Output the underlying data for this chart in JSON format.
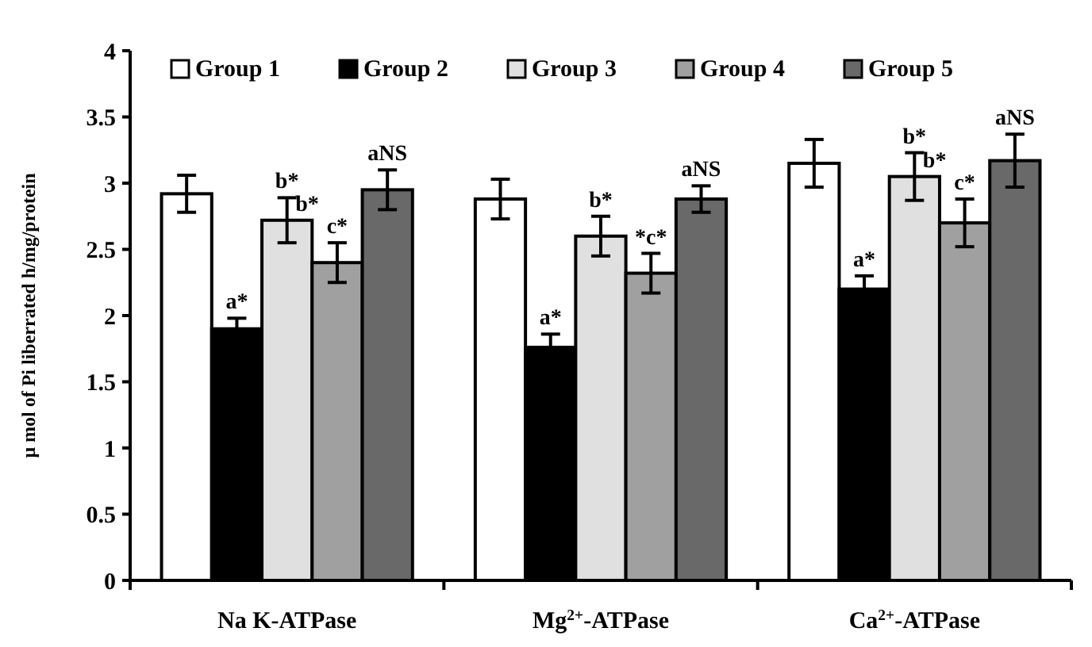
{
  "chart_data": {
    "type": "bar",
    "ylabel": "μ mol of Pi liberrated h/mg/protein",
    "categories": [
      "Na K-ATPase",
      "Mg$^{2+}$-ATPase",
      "Ca$^{2+}$-ATPase"
    ],
    "series": [
      {
        "name": "Group 1",
        "color": "#ffffff",
        "values": [
          2.92,
          2.88,
          3.15
        ],
        "errors": [
          0.14,
          0.15,
          0.18
        ]
      },
      {
        "name": "Group 2",
        "color": "#000000",
        "values": [
          1.9,
          1.76,
          2.2
        ],
        "errors": [
          0.08,
          0.1,
          0.1
        ]
      },
      {
        "name": "Group 3",
        "color": "#e0e0e0",
        "values": [
          2.72,
          2.6,
          3.05
        ],
        "errors": [
          0.17,
          0.15,
          0.18
        ]
      },
      {
        "name": "Group 4",
        "color": "#a0a0a0",
        "values": [
          2.4,
          2.32,
          2.7
        ],
        "errors": [
          0.15,
          0.15,
          0.18
        ]
      },
      {
        "name": "Group 5",
        "color": "#696969",
        "values": [
          2.95,
          2.88,
          3.17
        ],
        "errors": [
          0.15,
          0.1,
          0.2
        ]
      }
    ],
    "ylim": [
      0,
      4
    ],
    "yticks": [
      0,
      0.5,
      1,
      1.5,
      2,
      2.5,
      3,
      3.5,
      4
    ],
    "grid": false,
    "legend": "top",
    "annotations": [
      "a*",
      "b*",
      "b*",
      "c*",
      "aNS",
      "a*",
      "b*",
      "*c*",
      "aNS",
      "a*",
      "b*",
      "b*",
      "c*",
      "aNS"
    ]
  }
}
